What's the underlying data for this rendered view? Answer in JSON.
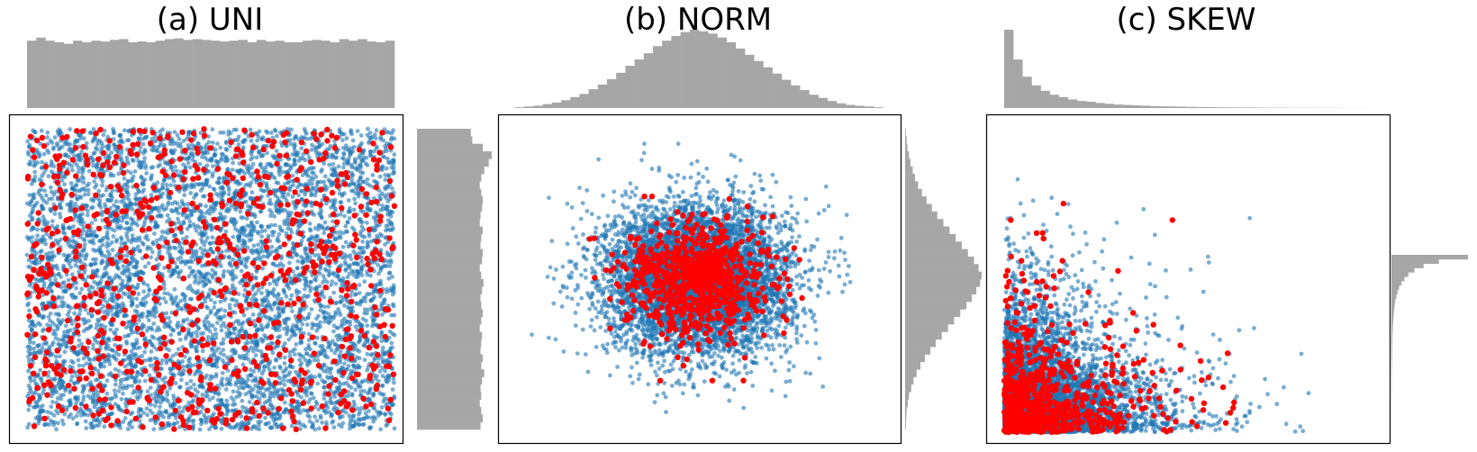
{
  "colors": {
    "blue": "#1f77b4",
    "red": "#ff0000",
    "hist": "#a6a6a6",
    "frame": "#000000"
  },
  "chart_data": [
    {
      "type": "scatter",
      "title": "(a) UNI",
      "distribution": "uniform",
      "marginal_histograms": {
        "top": true,
        "right": true
      },
      "axes_ticks": false,
      "xlim": [
        0,
        1
      ],
      "ylim": [
        0,
        1
      ],
      "series": [
        {
          "color": "blue",
          "description": "all points",
          "count_approx": 6000
        },
        {
          "color": "red",
          "description": "selected sample",
          "count_approx": 800
        }
      ],
      "top_hist": [
        0.86,
        0.9,
        0.86,
        0.84,
        0.82,
        0.86,
        0.84,
        0.86,
        0.85,
        0.87,
        0.88,
        0.84,
        0.85,
        0.84,
        0.86,
        0.88,
        0.89,
        0.87,
        0.88,
        0.87,
        0.86,
        0.85,
        0.86,
        0.87,
        0.84,
        0.87,
        0.85,
        0.86,
        0.84,
        0.84,
        0.86,
        0.87,
        0.86,
        0.84,
        0.88,
        0.86,
        0.88,
        0.85,
        0.84,
        0.86
      ],
      "right_hist": [
        0.72,
        0.74,
        0.88,
        1.0,
        0.96,
        0.9,
        0.86,
        0.84,
        0.86,
        0.88,
        0.87,
        0.85,
        0.84,
        0.88,
        0.86,
        0.85,
        0.88,
        0.87,
        0.84,
        0.86,
        0.89,
        0.87,
        0.85,
        0.86,
        0.88,
        0.86,
        0.84,
        0.87,
        0.86,
        0.85,
        0.88,
        0.86,
        0.9,
        0.87,
        0.85,
        0.86,
        0.84,
        0.86,
        0.88,
        0.85
      ]
    },
    {
      "type": "scatter",
      "title": "(b) NORM",
      "distribution": "normal",
      "marginal_histograms": {
        "top": true,
        "right": true
      },
      "axes_ticks": false,
      "xlim": [
        -4,
        4
      ],
      "ylim": [
        -4,
        4
      ],
      "series": [
        {
          "color": "blue",
          "description": "all points",
          "count_approx": 6000
        },
        {
          "color": "red",
          "description": "selected sample",
          "count_approx": 800
        }
      ],
      "top_hist": [
        0.01,
        0.02,
        0.03,
        0.05,
        0.07,
        0.1,
        0.14,
        0.18,
        0.24,
        0.3,
        0.37,
        0.45,
        0.54,
        0.62,
        0.7,
        0.79,
        0.86,
        0.92,
        0.97,
        1.0,
        0.98,
        0.95,
        0.9,
        0.84,
        0.76,
        0.68,
        0.6,
        0.52,
        0.44,
        0.36,
        0.29,
        0.23,
        0.17,
        0.13,
        0.09,
        0.06,
        0.04,
        0.03,
        0.02,
        0.01
      ],
      "right_hist": [
        0.01,
        0.02,
        0.03,
        0.05,
        0.07,
        0.1,
        0.13,
        0.17,
        0.22,
        0.28,
        0.35,
        0.42,
        0.5,
        0.58,
        0.66,
        0.74,
        0.82,
        0.9,
        0.96,
        1.0,
        0.98,
        0.93,
        0.87,
        0.8,
        0.72,
        0.64,
        0.56,
        0.48,
        0.4,
        0.33,
        0.26,
        0.2,
        0.15,
        0.11,
        0.08,
        0.05,
        0.035,
        0.02,
        0.015,
        0.01
      ]
    },
    {
      "type": "scatter",
      "title": "(c) SKEW",
      "distribution": "skewed",
      "marginal_histograms": {
        "top": true,
        "right": true
      },
      "axes_ticks": false,
      "xlim": [
        0,
        1
      ],
      "ylim": [
        0,
        1
      ],
      "series": [
        {
          "color": "blue",
          "description": "all points",
          "count_approx": 6000
        },
        {
          "color": "red",
          "description": "selected sample",
          "count_approx": 800
        }
      ],
      "top_hist": [
        1.0,
        0.62,
        0.4,
        0.29,
        0.22,
        0.17,
        0.14,
        0.11,
        0.09,
        0.08,
        0.065,
        0.055,
        0.045,
        0.04,
        0.035,
        0.03,
        0.025,
        0.022,
        0.02,
        0.018,
        0.015,
        0.013,
        0.012,
        0.01,
        0.009,
        0.008,
        0.007,
        0.006,
        0.005,
        0.004,
        0.004,
        0.003,
        0.003,
        0.003,
        0.002,
        0.002,
        0.002,
        0.001,
        0.001,
        0.001
      ],
      "right_hist": [
        1.0,
        0.62,
        0.42,
        0.3,
        0.22,
        0.17,
        0.13,
        0.1,
        0.08,
        0.065,
        0.05,
        0.042,
        0.035,
        0.03,
        0.025,
        0.021,
        0.018,
        0.015,
        0.013,
        0.011,
        0.01,
        0.009,
        0.008,
        0.007,
        0.006,
        0.005,
        0.004,
        0.004,
        0.003,
        0.003,
        0.003,
        0.002,
        0.002,
        0.002,
        0.001,
        0.001,
        0.001,
        0.001,
        0.001,
        0.001
      ]
    }
  ]
}
